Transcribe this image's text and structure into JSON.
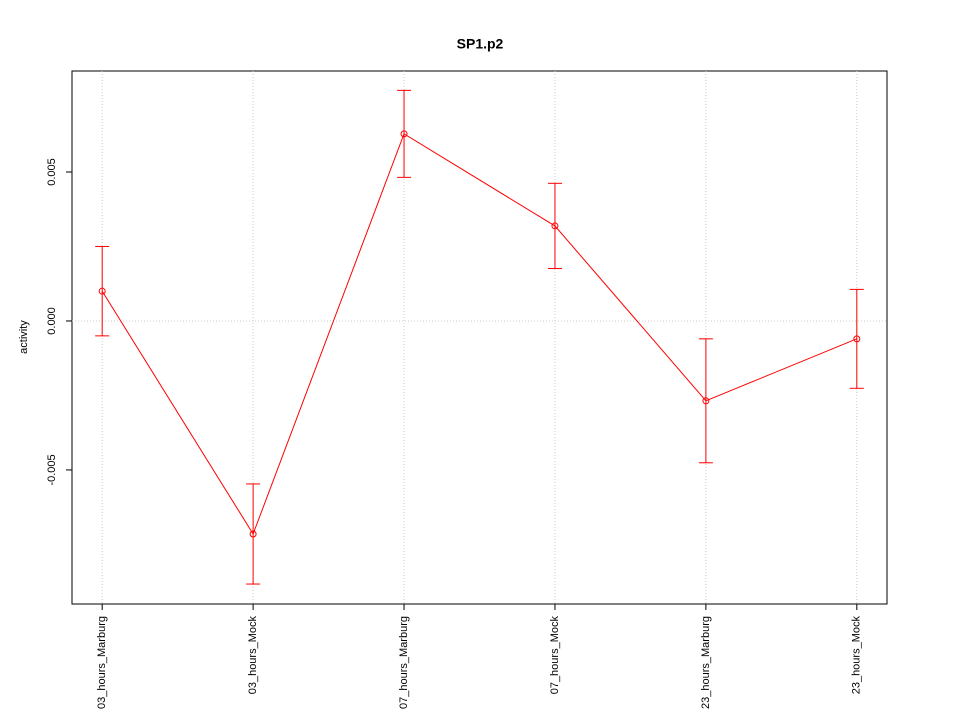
{
  "chart_data": {
    "type": "errorline",
    "title": "SP1.p2",
    "y_label": "activity",
    "categories": [
      "03_hours_Marburg",
      "03_hours_Mock",
      "07_hours_Marburg",
      "07_hours_Mock",
      "23_hours_Marburg",
      "23_hours_Mock"
    ],
    "series": [
      {
        "color": "#ff0000",
        "values": [
          0.001,
          -0.00715,
          0.00628,
          0.00319,
          -0.00268,
          -0.0006
        ],
        "errors": [
          0.0015,
          0.00168,
          0.00146,
          0.00143,
          0.00208,
          0.00166
        ]
      }
    ],
    "ylim": [
      -0.0095,
      0.00839
    ],
    "yticks": [
      -0.005,
      {
        "value": 0,
        "label": "0.000"
      },
      0.005
    ],
    "hlines": [
      0
    ],
    "grid": true
  }
}
